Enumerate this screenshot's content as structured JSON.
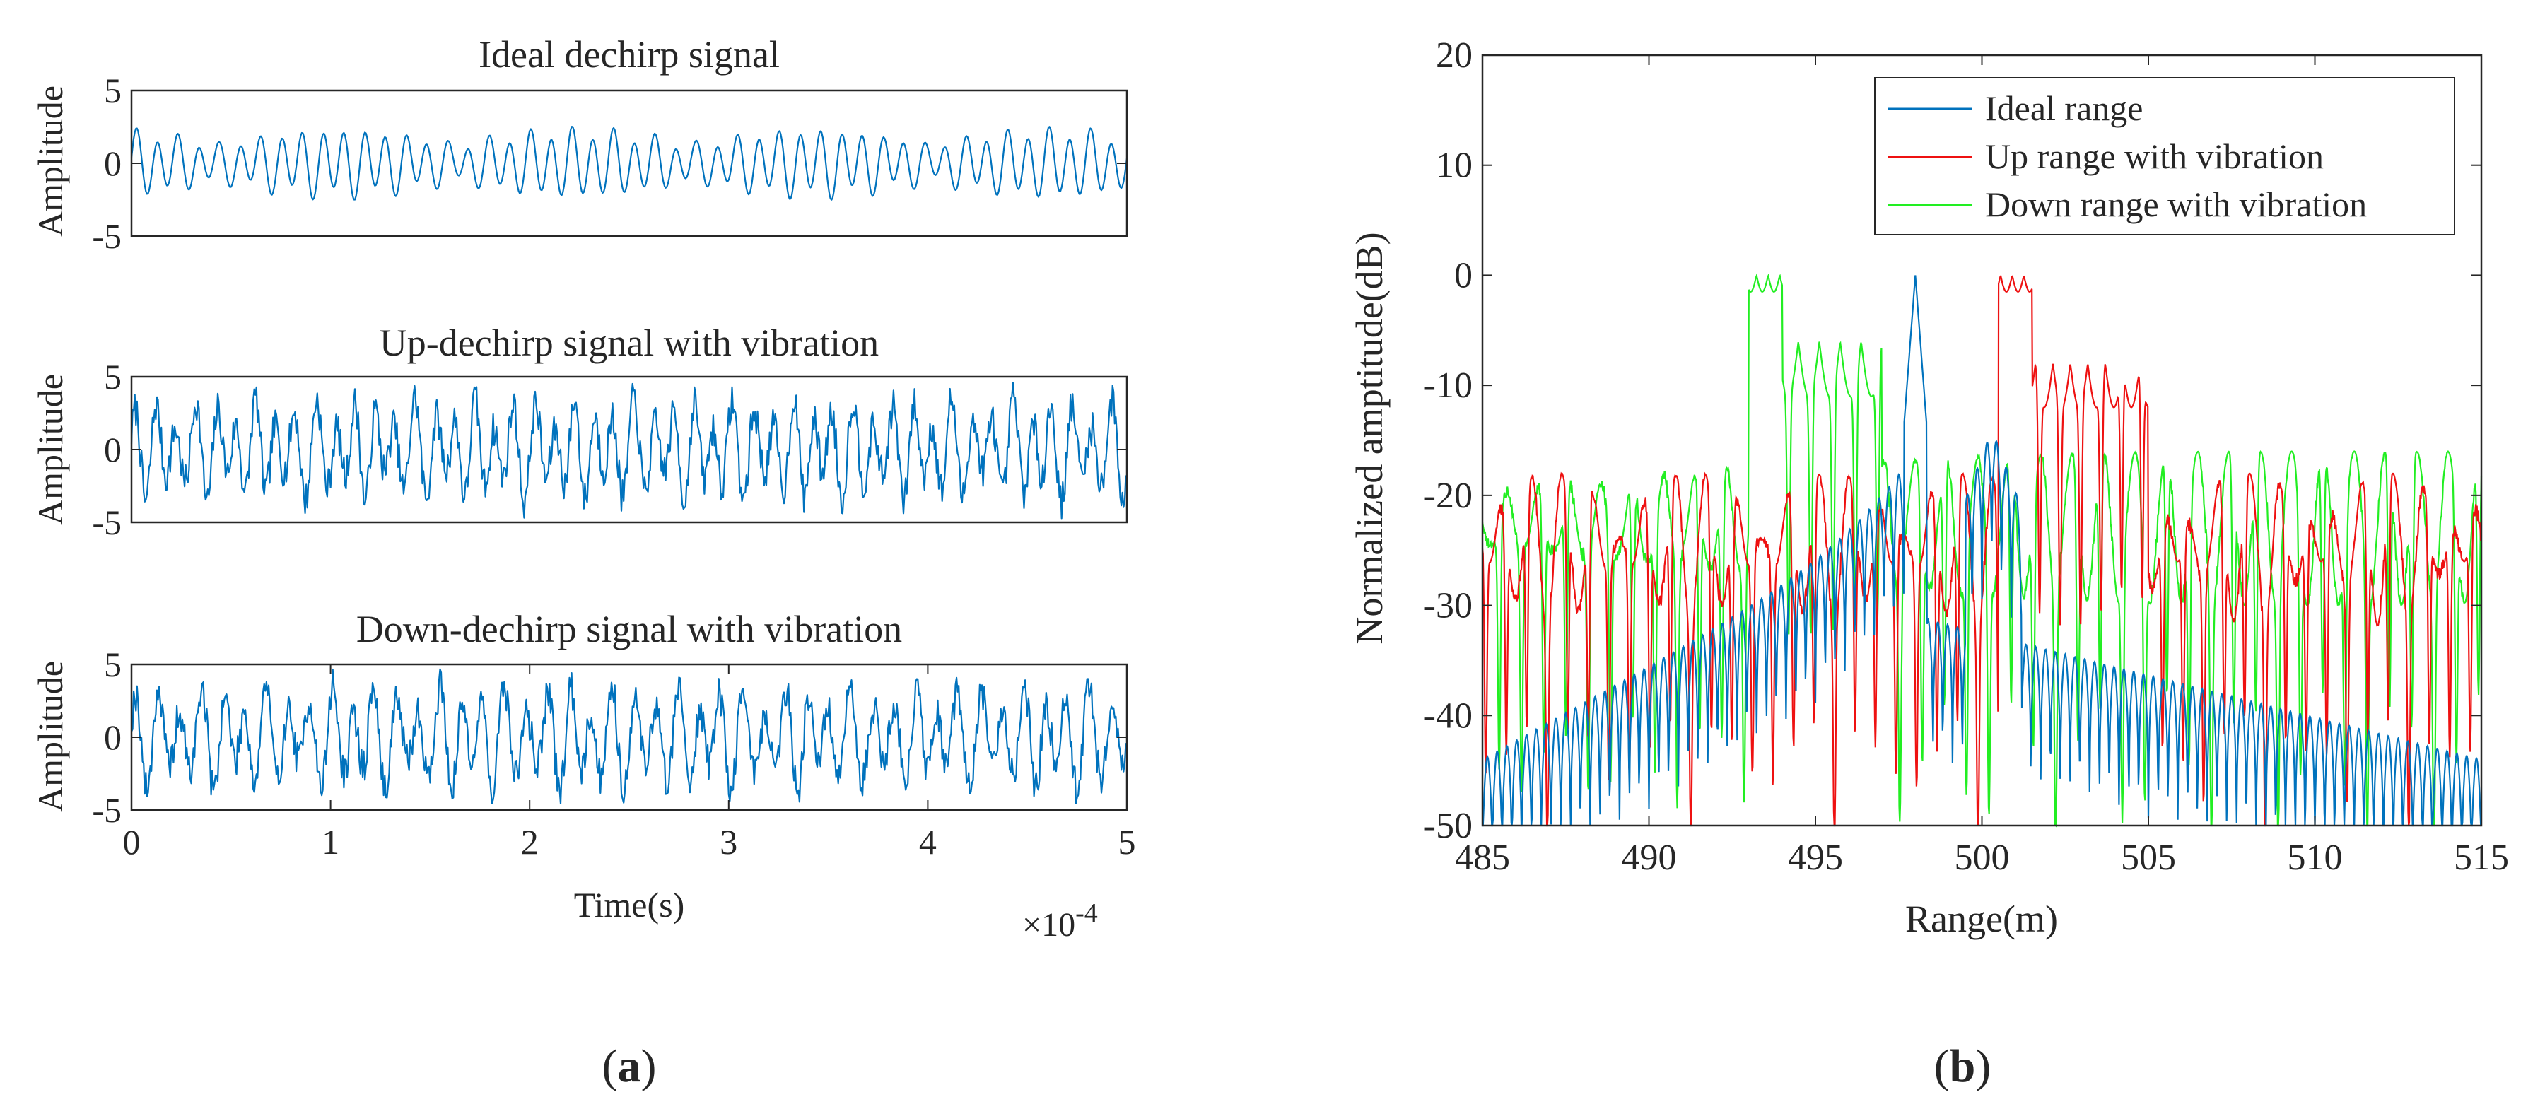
{
  "colors": {
    "blue": "#0072BD",
    "red": "#EE1111",
    "green": "#22EE22",
    "axis": "#262626"
  },
  "captions": {
    "a_letter": "a",
    "b_letter": "b",
    "open": "(",
    "close": ")"
  },
  "chart_data": [
    {
      "type": "line",
      "id": "ideal-dechirp",
      "title": "Ideal dechirp signal",
      "xlabel": "",
      "ylabel": "Amplitude",
      "xlim": [
        0,
        5
      ],
      "ylim": [
        -5,
        5
      ],
      "yticks": [
        -5,
        0,
        5
      ],
      "ytick_labels": [
        "-5",
        "0",
        "5"
      ],
      "series": [
        {
          "name": "Ideal dechirp signal",
          "color": "blue",
          "synth": {
            "kind": "ideal",
            "cycles": 48,
            "amp": 2.1,
            "env_amp": 1.3,
            "env_cycles": 4.2,
            "n": 900
          }
        }
      ]
    },
    {
      "type": "line",
      "id": "up-dechirp",
      "title": "Up-dechirp signal with vibration",
      "xlabel": "",
      "ylabel": "Amplitude",
      "xlim": [
        0,
        5
      ],
      "ylim": [
        -5,
        5
      ],
      "yticks": [
        -5,
        0,
        5
      ],
      "ytick_labels": [
        "-5",
        "0",
        "5"
      ],
      "series": [
        {
          "name": "Up-dechirp signal with vibration",
          "color": "blue",
          "synth": {
            "kind": "noisy",
            "cycles": 50,
            "amp": 2.5,
            "seed": 7,
            "n": 900
          }
        }
      ]
    },
    {
      "type": "line",
      "id": "down-dechirp",
      "title": "Down-dechirp signal with vibration",
      "xlabel": "Time(s)",
      "ylabel": "Amplitude",
      "xlim": [
        0,
        5
      ],
      "ylim": [
        -5,
        5
      ],
      "xticks": [
        0,
        1,
        2,
        3,
        4,
        5
      ],
      "xtick_labels": [
        "0",
        "1",
        "2",
        "3",
        "4",
        "5"
      ],
      "yticks": [
        -5,
        0,
        5
      ],
      "ytick_labels": [
        "-5",
        "0",
        "5"
      ],
      "exponent": {
        "base": "×10",
        "power": "-4"
      },
      "series": [
        {
          "name": "Down-dechirp signal with vibration",
          "color": "blue",
          "synth": {
            "kind": "noisy",
            "cycles": 46,
            "amp": 2.6,
            "seed": 19,
            "n": 900
          }
        }
      ]
    },
    {
      "type": "line",
      "id": "range-profile",
      "title": "",
      "xlabel": "Range(m)",
      "ylabel": "Normalized amptitude(dB)",
      "xlim": [
        485,
        515
      ],
      "ylim": [
        -50,
        20
      ],
      "xticks": [
        485,
        490,
        495,
        500,
        505,
        510,
        515
      ],
      "xtick_labels": [
        "485",
        "490",
        "495",
        "500",
        "505",
        "510",
        "515"
      ],
      "yticks": [
        -50,
        -40,
        -30,
        -20,
        -10,
        0,
        10,
        20
      ],
      "ytick_labels": [
        "-50",
        "-40",
        "-30",
        "-20",
        "-10",
        "0",
        "10",
        "20"
      ],
      "legend_position": "top-right",
      "series": [
        {
          "name": "Ideal range",
          "color": "blue",
          "peak_x": 498,
          "peak_db": 0
        },
        {
          "name": "Up range with vibration",
          "color": "red",
          "peak_x": [
            500.5,
            501.5
          ],
          "peak_db": 0
        },
        {
          "name": "Down range with vibration",
          "color": "green",
          "peak_x": [
            493,
            494
          ],
          "peak_db": 0
        }
      ]
    }
  ]
}
